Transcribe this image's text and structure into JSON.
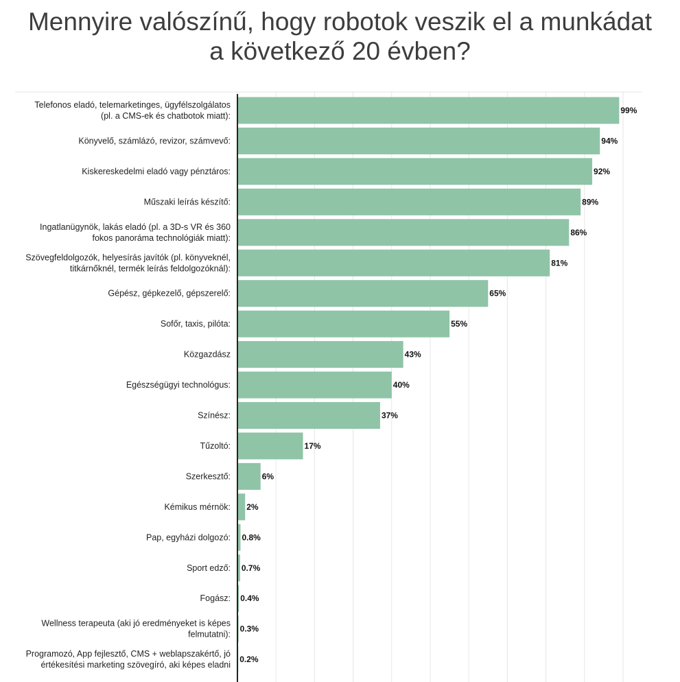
{
  "title_lines": [
    "Mennyire valószínű, hogy robotok veszik el a munkádat",
    "a következő 20 évben?"
  ],
  "colors": {
    "bar": "#8fc4a7",
    "axis": "#222222",
    "grid": "#e6e6e6"
  },
  "chart_data": {
    "type": "bar",
    "orientation": "horizontal",
    "title": "Mennyire valószínű, hogy robotok veszik el a munkádat a következő 20 évben?",
    "xlim": [
      0,
      100
    ],
    "grid": true,
    "categories": [
      "Telefonos eladó, telemarketinges, ügyfélszolgálatos (pl. a CMS-ek és chatbotok miatt):",
      "Könyvelő, számlázó, revizor, számvevő:",
      "Kiskereskedelmi eladó vagy pénztáros:",
      "Műszaki leírás készítő:",
      "Ingatlanügynök, lakás eladó (pl. a 3D-s VR és 360 fokos panoráma technológiák miatt):",
      "Szövegfeldolgozók, helyesírás javítók (pl. könyveknél, titkárnőknél, termék leírás feldolgozóknál):",
      "Gépész, gépkezelő, gépszerelő:",
      "Sofőr, taxis, pilóta:",
      "Közgazdász",
      "Egészségügyi technológus:",
      "Színész:",
      "Tűzoltó:",
      "Szerkesztő:",
      "Kémikus mérnök:",
      "Pap, egyházi dolgozó:",
      "Sport edző:",
      "Fogász:",
      "Wellness terapeuta (aki jó eredményeket is képes felmutatni):",
      "Programozó, App fejlesztő, CMS + weblapszakértő, jó értékesítési marketing szövegíró, aki képes eladni"
    ],
    "label_lines": [
      [
        "Telefonos eladó, telemarketinges, ügyfélszolgálatos",
        "(pl. a CMS-ek és chatbotok miatt):"
      ],
      [
        "Könyvelő, számlázó, revizor, számvevő:"
      ],
      [
        "Kiskereskedelmi eladó vagy pénztáros:"
      ],
      [
        "Műszaki leírás készítő:"
      ],
      [
        "Ingatlanügynök, lakás eladó (pl. a 3D-s VR és 360",
        "fokos panoráma technológiák miatt):"
      ],
      [
        "Szövegfeldolgozók, helyesírás javítók (pl. könyveknél,",
        "titkárnőknél, termék leírás feldolgozóknál):"
      ],
      [
        "Gépész, gépkezelő, gépszerelő:"
      ],
      [
        "Sofőr, taxis, pilóta:"
      ],
      [
        "Közgazdász"
      ],
      [
        "Egészségügyi technológus:"
      ],
      [
        "Színész:"
      ],
      [
        "Tűzoltó:"
      ],
      [
        "Szerkesztő:"
      ],
      [
        "Kémikus mérnök:"
      ],
      [
        "Pap, egyházi dolgozó:"
      ],
      [
        "Sport edző:"
      ],
      [
        "Fogász:"
      ],
      [
        "Wellness terapeuta (aki jó eredményeket is képes",
        "felmutatni):"
      ],
      [
        "Programozó, App fejlesztő, CMS + weblapszakértő, jó",
        "értékesítési marketing szövegíró, aki képes eladni"
      ]
    ],
    "values": [
      99,
      94,
      92,
      89,
      86,
      81,
      65,
      55,
      43,
      40,
      37,
      17,
      6,
      2,
      0.8,
      0.7,
      0.4,
      0.3,
      0.2
    ],
    "value_labels": [
      "99%",
      "94%",
      "92%",
      "89%",
      "86%",
      "81%",
      "65%",
      "55%",
      "43%",
      "40%",
      "37%",
      "17%",
      "6%",
      "2%",
      "0.8%",
      "0.7%",
      "0.4%",
      "0.3%",
      "0.2%"
    ]
  }
}
